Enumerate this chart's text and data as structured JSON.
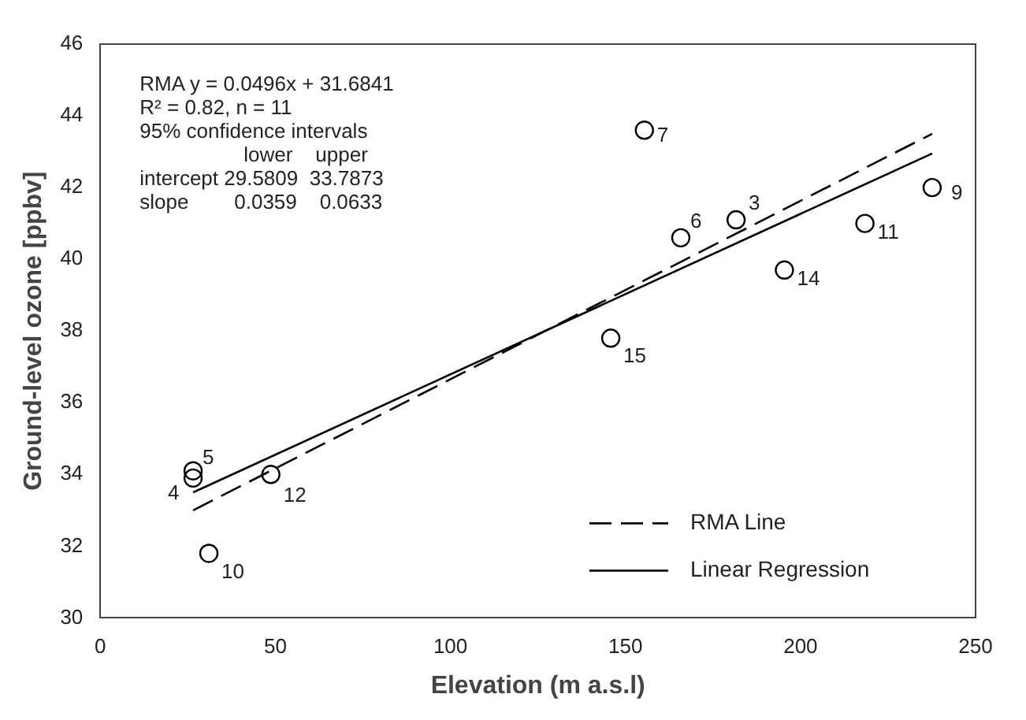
{
  "chart_data": {
    "type": "scatter",
    "xlabel": "Elevation (m a.s.l)",
    "ylabel": "Ground-level ozone [ppbv]",
    "xlim": [
      0,
      250
    ],
    "xticks": [
      0,
      50,
      100,
      150,
      200,
      250
    ],
    "ylim": [
      30,
      46
    ],
    "yticks": [
      30,
      32,
      34,
      36,
      38,
      40,
      42,
      44,
      46
    ],
    "grid": false,
    "legend": "bottom right",
    "series": [
      {
        "marker": "circle",
        "color": "#000000",
        "x": [
          26.5,
          26.5,
          48.7,
          31,
          145.8,
          155.4,
          165.8,
          181.6,
          195.4,
          218.4,
          237.6
        ],
        "values": [
          34.1,
          33.9,
          34.0,
          31.8,
          37.8,
          43.6,
          40.6,
          41.1,
          39.7,
          41.0,
          42.0
        ]
      },
      {
        "type": "line",
        "name": "RMA Line",
        "color": "#000000",
        "line_style": "dashed",
        "x": [
          26.5,
          237.6
        ],
        "values": [
          33.0,
          43.5
        ]
      },
      {
        "type": "line",
        "name": "Linear Regression",
        "color": "#000000",
        "line_style": "solid",
        "x": [
          26.5,
          237.6
        ],
        "values": [
          33.5,
          42.95
        ]
      }
    ],
    "annotations": [
      "RMA y = 0.0496x + 31.6841",
      "R² = 0.82, n = 11",
      "95% confidence intervals",
      "lower    upper",
      "intercept 29.5809  33.7873",
      "slope        0.0359    0.0633",
      {
        "text": "5",
        "x": 26.5,
        "y": 34.1
      },
      {
        "text": "4",
        "x": 26.5,
        "y": 33.9
      },
      {
        "text": "12",
        "x": 48.7,
        "y": 34.0
      },
      {
        "text": "10",
        "x": 31,
        "y": 31.8
      },
      {
        "text": "15",
        "x": 145.8,
        "y": 37.8
      },
      {
        "text": "7",
        "x": 155.4,
        "y": 43.6
      },
      {
        "text": "6",
        "x": 165.8,
        "y": 40.6
      },
      {
        "text": "3",
        "x": 181.6,
        "y": 41.1
      },
      {
        "text": "14",
        "x": 195.4,
        "y": 39.7
      },
      {
        "text": "11",
        "x": 218.4,
        "y": 41.0
      },
      {
        "text": "9",
        "x": 237.6,
        "y": 42.0
      }
    ]
  }
}
